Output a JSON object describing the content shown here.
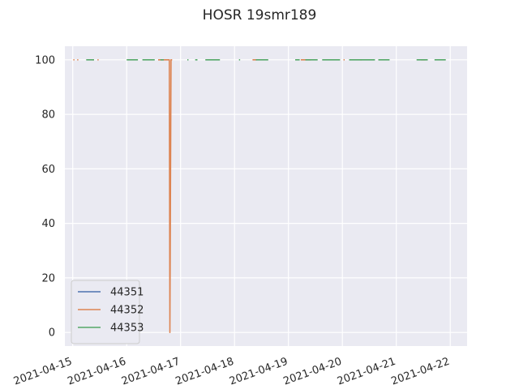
{
  "chart_data": {
    "type": "line",
    "title": "HOSR 19smr189",
    "xlabel": "",
    "ylabel": "",
    "x_ticks": [
      "2021-04-15",
      "2021-04-16",
      "2021-04-17",
      "2021-04-18",
      "2021-04-19",
      "2021-04-20",
      "2021-04-21",
      "2021-04-22"
    ],
    "y_ticks": [
      "0",
      "20",
      "40",
      "60",
      "80",
      "100"
    ],
    "xlim": [
      "2021-04-14T20:30",
      "2021-04-22T07:30"
    ],
    "ylim": [
      -5,
      105
    ],
    "grid": true,
    "legend_position": "lower-left",
    "colors": {
      "axes_background": "#eaeaf2",
      "grid": "#ffffff",
      "44351": "#4c72b0",
      "44352": "#dd8452",
      "44353": "#55a868"
    },
    "series": [
      {
        "name": "44351",
        "segments": []
      },
      {
        "name": "44352",
        "segments": [
          [
            [
              "2021-04-15T00:15",
              100
            ],
            [
              "2021-04-15T00:45",
              100
            ]
          ],
          [
            [
              "2021-04-15T02:00",
              100
            ],
            [
              "2021-04-15T02:30",
              100
            ]
          ],
          [
            [
              "2021-04-15T08:45",
              100
            ],
            [
              "2021-04-15T09:15",
              100
            ]
          ],
          [
            [
              "2021-04-15T11:00",
              100
            ],
            [
              "2021-04-15T11:30",
              100
            ]
          ],
          [
            [
              "2021-04-16T14:00",
              100
            ],
            [
              "2021-04-16T19:00",
              100
            ],
            [
              "2021-04-16T19:15",
              0
            ],
            [
              "2021-04-16T19:45",
              100
            ],
            [
              "2021-04-16T20:15",
              100
            ]
          ],
          [
            [
              "2021-04-18T08:00",
              100
            ],
            [
              "2021-04-18T10:00",
              100
            ]
          ],
          [
            [
              "2021-04-19T05:30",
              100
            ],
            [
              "2021-04-19T10:00",
              100
            ]
          ],
          [
            [
              "2021-04-20T00:30",
              100
            ],
            [
              "2021-04-20T01:00",
              100
            ]
          ],
          [
            [
              "2021-04-20T08:00",
              100
            ],
            [
              "2021-04-20T08:30",
              100
            ]
          ],
          [
            [
              "2021-04-21T11:00",
              100
            ],
            [
              "2021-04-21T13:00",
              100
            ]
          ]
        ]
      },
      {
        "name": "44353",
        "segments": [
          [
            [
              "2021-04-15T06:00",
              100
            ],
            [
              "2021-04-15T09:30",
              100
            ]
          ],
          [
            [
              "2021-04-16T00:00",
              100
            ],
            [
              "2021-04-16T05:00",
              100
            ]
          ],
          [
            [
              "2021-04-16T07:00",
              100
            ],
            [
              "2021-04-16T12:30",
              100
            ]
          ],
          [
            [
              "2021-04-16T15:00",
              100
            ],
            [
              "2021-04-16T16:30",
              100
            ]
          ],
          [
            [
              "2021-04-17T03:00",
              100
            ],
            [
              "2021-04-17T03:30",
              100
            ]
          ],
          [
            [
              "2021-04-17T06:30",
              100
            ],
            [
              "2021-04-17T07:30",
              100
            ]
          ],
          [
            [
              "2021-04-17T11:00",
              100
            ],
            [
              "2021-04-17T17:30",
              100
            ]
          ],
          [
            [
              "2021-04-18T02:00",
              100
            ],
            [
              "2021-04-18T02:30",
              100
            ]
          ],
          [
            [
              "2021-04-18T09:30",
              100
            ],
            [
              "2021-04-18T15:00",
              100
            ]
          ],
          [
            [
              "2021-04-19T03:00",
              100
            ],
            [
              "2021-04-19T05:00",
              100
            ]
          ],
          [
            [
              "2021-04-19T07:30",
              100
            ],
            [
              "2021-04-19T13:00",
              100
            ]
          ],
          [
            [
              "2021-04-19T15:00",
              100
            ],
            [
              "2021-04-19T23:00",
              100
            ]
          ],
          [
            [
              "2021-04-20T03:00",
              100
            ],
            [
              "2021-04-20T14:30",
              100
            ]
          ],
          [
            [
              "2021-04-20T16:00",
              100
            ],
            [
              "2021-04-20T21:00",
              100
            ]
          ],
          [
            [
              "2021-04-21T09:00",
              100
            ],
            [
              "2021-04-21T14:00",
              100
            ]
          ],
          [
            [
              "2021-04-21T17:00",
              100
            ],
            [
              "2021-04-21T22:00",
              100
            ]
          ]
        ]
      }
    ]
  }
}
